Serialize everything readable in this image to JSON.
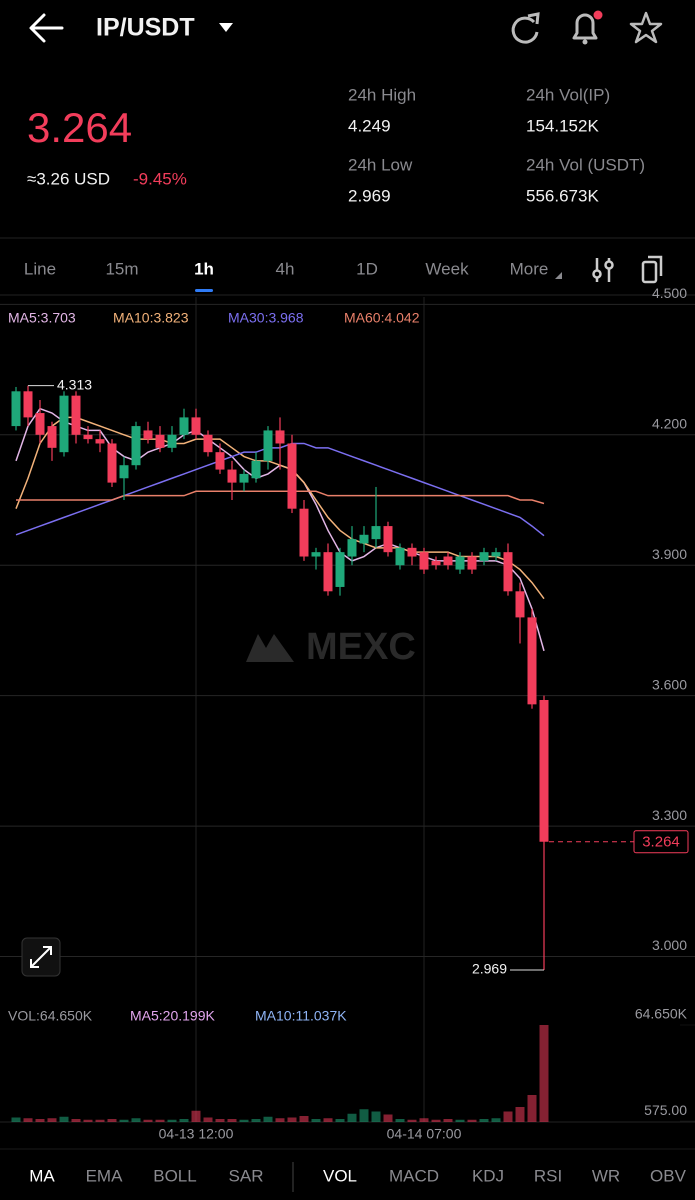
{
  "header": {
    "pair": "IP/USDT"
  },
  "ticker": {
    "price": "3.264",
    "usd": "≈3.26 USD",
    "change": "-9.45%",
    "stats": [
      {
        "label": "24h High",
        "value": "4.249"
      },
      {
        "label": "24h Vol(IP)",
        "value": "154.152K"
      },
      {
        "label": "24h Low",
        "value": "2.969"
      },
      {
        "label": "24h Vol (USDT)",
        "value": "556.673K"
      }
    ]
  },
  "timeframes": {
    "items": [
      "Line",
      "15m",
      "1h",
      "4h",
      "1D",
      "Week",
      "More"
    ],
    "active": 2
  },
  "chart_data": [
    {
      "type": "candlestick",
      "watermark": "MEXC",
      "up_color": "#1fa87a",
      "down_color": "#f23d5b",
      "ylim": [
        2.9,
        4.51
      ],
      "yticks": [
        {
          "value": 4.5,
          "label": "4.500"
        },
        {
          "value": 4.2,
          "label": "4.200"
        },
        {
          "value": 3.9,
          "label": "3.900"
        },
        {
          "value": 3.6,
          "label": "3.600"
        },
        {
          "value": 3.3,
          "label": "3.300"
        },
        {
          "value": 3.0,
          "label": "3.000"
        }
      ],
      "grid": true,
      "open": [
        4.22,
        4.3,
        4.25,
        4.22,
        4.16,
        4.29,
        4.2,
        4.19,
        4.18,
        4.1,
        4.13,
        4.21,
        4.2,
        4.17,
        4.2,
        4.24,
        4.2,
        4.16,
        4.12,
        4.09,
        4.1,
        4.14,
        4.21,
        4.18,
        4.03,
        3.92,
        3.93,
        3.85,
        3.92,
        3.95,
        3.96,
        3.99,
        3.9,
        3.94,
        3.93,
        3.91,
        3.92,
        3.89,
        3.92,
        3.91,
        3.92,
        3.93,
        3.84,
        3.78,
        3.59
      ],
      "high": [
        4.31,
        4.313,
        4.28,
        4.23,
        4.3,
        4.3,
        4.22,
        4.21,
        4.19,
        4.15,
        4.23,
        4.23,
        4.22,
        4.22,
        4.26,
        4.26,
        4.21,
        4.18,
        4.14,
        4.12,
        4.16,
        4.22,
        4.24,
        4.2,
        4.05,
        3.94,
        3.95,
        3.94,
        3.99,
        3.99,
        4.08,
        4.0,
        3.95,
        3.95,
        3.94,
        3.92,
        3.93,
        3.93,
        3.93,
        3.94,
        3.94,
        3.95,
        3.86,
        3.8,
        3.6
      ],
      "low": [
        4.21,
        4.22,
        4.18,
        4.14,
        4.15,
        4.18,
        4.18,
        4.16,
        4.08,
        4.05,
        4.12,
        4.18,
        4.16,
        4.16,
        4.19,
        4.19,
        4.15,
        4.11,
        4.05,
        4.07,
        4.09,
        4.12,
        4.12,
        4.02,
        3.91,
        3.89,
        3.83,
        3.83,
        3.9,
        3.93,
        3.94,
        3.92,
        3.89,
        3.9,
        3.88,
        3.89,
        3.89,
        3.88,
        3.88,
        3.9,
        3.91,
        3.83,
        3.72,
        3.57,
        2.969
      ],
      "close": [
        4.3,
        4.24,
        4.2,
        4.17,
        4.29,
        4.2,
        4.19,
        4.18,
        4.09,
        4.13,
        4.22,
        4.19,
        4.17,
        4.2,
        4.24,
        4.2,
        4.16,
        4.12,
        4.09,
        4.11,
        4.14,
        4.21,
        4.18,
        4.03,
        3.92,
        3.93,
        3.84,
        3.93,
        3.96,
        3.97,
        3.99,
        3.93,
        3.94,
        3.92,
        3.89,
        3.9,
        3.9,
        3.92,
        3.89,
        3.93,
        3.93,
        3.84,
        3.78,
        3.58,
        3.264
      ],
      "series": [
        {
          "name": "MA5:3.703",
          "color": "#e2b6e6",
          "values": [
            4.14,
            4.22,
            4.26,
            4.25,
            4.23,
            4.22,
            4.21,
            4.21,
            4.17,
            4.15,
            4.14,
            4.16,
            4.17,
            4.18,
            4.2,
            4.21,
            4.19,
            4.17,
            4.15,
            4.12,
            4.1,
            4.11,
            4.13,
            4.12,
            4.09,
            4.04,
            3.98,
            3.93,
            3.91,
            3.92,
            3.94,
            3.95,
            3.94,
            3.93,
            3.92,
            3.91,
            3.91,
            3.91,
            3.91,
            3.91,
            3.91,
            3.9,
            3.87,
            3.8,
            3.703
          ]
        },
        {
          "name": "MA10:3.823",
          "color": "#f2b27a",
          "values": [
            4.03,
            4.1,
            4.18,
            4.22,
            4.24,
            4.24,
            4.23,
            4.22,
            4.21,
            4.2,
            4.19,
            4.19,
            4.19,
            4.18,
            4.18,
            4.19,
            4.19,
            4.19,
            4.17,
            4.15,
            4.14,
            4.14,
            4.13,
            4.12,
            4.09,
            4.05,
            4.01,
            3.98,
            3.96,
            3.95,
            3.94,
            3.94,
            3.94,
            3.93,
            3.93,
            3.93,
            3.93,
            3.92,
            3.92,
            3.92,
            3.92,
            3.91,
            3.89,
            3.86,
            3.823
          ]
        },
        {
          "name": "MA30:3.968",
          "color": "#7b6ff0",
          "values": [
            3.97,
            3.98,
            3.99,
            4.0,
            4.01,
            4.02,
            4.03,
            4.04,
            4.05,
            4.06,
            4.07,
            4.08,
            4.09,
            4.1,
            4.11,
            4.12,
            4.13,
            4.14,
            4.15,
            4.16,
            4.16,
            4.17,
            4.17,
            4.18,
            4.18,
            4.17,
            4.17,
            4.16,
            4.15,
            4.14,
            4.13,
            4.12,
            4.11,
            4.1,
            4.09,
            4.08,
            4.07,
            4.06,
            4.05,
            4.04,
            4.03,
            4.02,
            4.01,
            3.99,
            3.968
          ]
        },
        {
          "name": "MA60:4.042",
          "color": "#e9806a",
          "values": [
            4.05,
            4.05,
            4.05,
            4.05,
            4.05,
            4.05,
            4.05,
            4.05,
            4.05,
            4.06,
            4.06,
            4.06,
            4.06,
            4.06,
            4.06,
            4.07,
            4.07,
            4.07,
            4.07,
            4.07,
            4.07,
            4.07,
            4.07,
            4.07,
            4.07,
            4.07,
            4.06,
            4.06,
            4.06,
            4.06,
            4.06,
            4.06,
            4.06,
            4.06,
            4.06,
            4.06,
            4.06,
            4.06,
            4.06,
            4.06,
            4.06,
            4.06,
            4.05,
            4.05,
            4.042
          ]
        }
      ]
    },
    {
      "type": "bar",
      "categories": [
        null,
        null,
        null,
        null,
        null,
        null,
        null,
        null,
        null,
        null,
        null,
        null,
        null,
        null,
        null,
        "04-13 12:00",
        null,
        null,
        null,
        null,
        null,
        null,
        null,
        null,
        null,
        null,
        null,
        null,
        null,
        null,
        null,
        null,
        null,
        null,
        "04-14 07:00",
        null,
        null,
        null,
        null,
        null,
        null,
        null,
        null,
        null,
        null
      ],
      "ylim": [
        0,
        64650
      ],
      "yticks": [
        {
          "value": 64650,
          "label": "64.650K"
        },
        {
          "value": 575,
          "label": "575.00"
        }
      ],
      "series": [
        {
          "name": "VOL:64.650K",
          "values": [
            3000,
            2500,
            2000,
            2500,
            3500,
            2000,
            1500,
            1500,
            2000,
            1500,
            2500,
            1500,
            1500,
            1500,
            2000,
            7500,
            3000,
            2000,
            2000,
            1500,
            2000,
            3500,
            2500,
            3000,
            4000,
            2000,
            2500,
            2000,
            5500,
            8500,
            7000,
            5000,
            2000,
            1500,
            2500,
            1500,
            2000,
            1500,
            1500,
            2000,
            2500,
            7000,
            10000,
            18000,
            64650
          ]
        }
      ],
      "ma_labels": [
        {
          "text": "MA5:20.199K",
          "color": "#e2a6ee"
        },
        {
          "text": "MA10:11.037K",
          "color": "#8fb4f5"
        }
      ]
    }
  ],
  "indicator_tabs": {
    "main": [
      "MA",
      "EMA",
      "BOLL",
      "SAR"
    ],
    "sub": [
      "VOL",
      "MACD",
      "KDJ",
      "RSI",
      "WR",
      "OBV"
    ]
  }
}
